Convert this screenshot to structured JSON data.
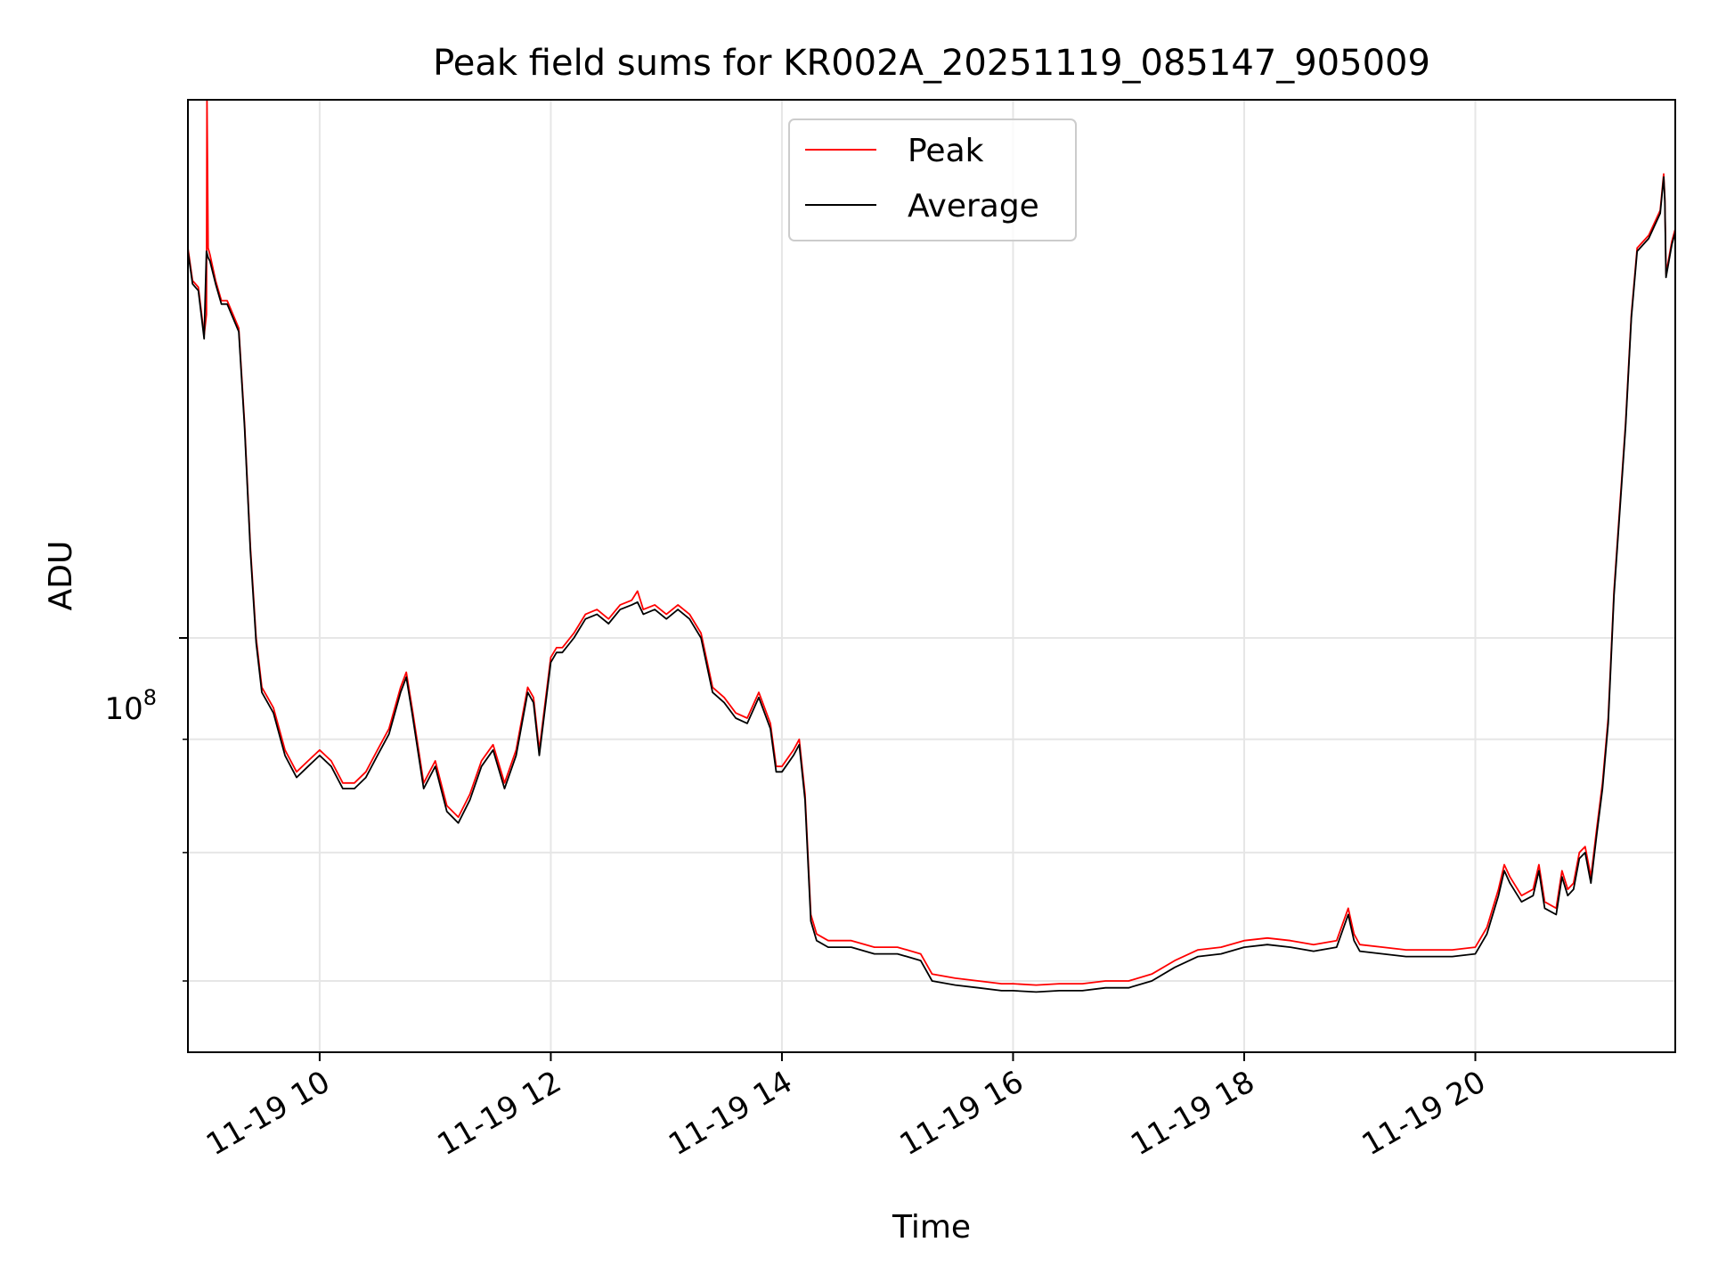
{
  "chart_data": {
    "type": "line",
    "title": "Peak field sums for KR002A_20251119_085147_905009",
    "xlabel": "Time",
    "ylabel": "ADU",
    "y_scale": "log",
    "x_ticks": [
      "11-19 10",
      "11-19 12",
      "11-19 14",
      "11-19 16",
      "11-19 18",
      "11-19 20"
    ],
    "x_tick_values": [
      10,
      12,
      14,
      16,
      18,
      20
    ],
    "y_major_tick_value": 100000000,
    "y_major_tick_label": {
      "base": "10",
      "exp": "8"
    },
    "y_minor_tick_values": [
      70000000,
      80000000,
      90000000
    ],
    "xlim": [
      8.86,
      21.73
    ],
    "ylim": [
      65000000,
      175000000
    ],
    "grid": true,
    "legend_position": "upper center",
    "series": [
      {
        "name": "Peak",
        "color": "#ff0000",
        "x": [
          8.86,
          8.9,
          8.95,
          9.0,
          9.02,
          9.025,
          9.035,
          9.05,
          9.1,
          9.15,
          9.2,
          9.3,
          9.35,
          9.4,
          9.45,
          9.5,
          9.55,
          9.6,
          9.7,
          9.8,
          9.9,
          10.0,
          10.1,
          10.2,
          10.3,
          10.4,
          10.5,
          10.6,
          10.7,
          10.75,
          10.8,
          10.9,
          11.0,
          11.1,
          11.2,
          11.3,
          11.4,
          11.5,
          11.6,
          11.7,
          11.8,
          11.85,
          11.9,
          12.0,
          12.05,
          12.1,
          12.2,
          12.3,
          12.4,
          12.5,
          12.6,
          12.7,
          12.75,
          12.8,
          12.9,
          13.0,
          13.1,
          13.2,
          13.3,
          13.4,
          13.5,
          13.6,
          13.7,
          13.8,
          13.9,
          13.95,
          14.0,
          14.1,
          14.15,
          14.2,
          14.25,
          14.3,
          14.4,
          14.6,
          14.8,
          15.0,
          15.2,
          15.3,
          15.5,
          15.7,
          15.9,
          16.0,
          16.2,
          16.4,
          16.6,
          16.8,
          17.0,
          17.2,
          17.4,
          17.6,
          17.8,
          18.0,
          18.2,
          18.4,
          18.6,
          18.8,
          18.9,
          18.95,
          19.0,
          19.2,
          19.4,
          19.6,
          19.8,
          20.0,
          20.1,
          20.2,
          20.25,
          20.3,
          20.4,
          20.5,
          20.55,
          20.6,
          20.7,
          20.75,
          20.8,
          20.85,
          20.9,
          20.95,
          21.0,
          21.05,
          21.1,
          21.15,
          21.2,
          21.3,
          21.35,
          21.4,
          21.5,
          21.6,
          21.63,
          21.64,
          21.65,
          21.7,
          21.73
        ],
        "y": [
          150000000,
          145000000,
          144000000,
          137000000,
          140000000,
          175000000,
          150000000,
          149000000,
          145000000,
          142000000,
          142000000,
          138000000,
          125000000,
          110000000,
          100000000,
          95000000,
          94000000,
          93000000,
          89000000,
          87000000,
          88000000,
          89000000,
          88000000,
          86000000,
          86000000,
          87000000,
          89000000,
          91000000,
          95000000,
          96500000,
          93000000,
          86000000,
          88000000,
          84000000,
          83000000,
          85000000,
          88000000,
          89500000,
          86000000,
          89000000,
          95000000,
          94000000,
          89000000,
          98000000,
          99000000,
          99000000,
          100500000,
          102500000,
          103000000,
          102000000,
          103500000,
          104000000,
          105000000,
          103000000,
          103500000,
          102500000,
          103500000,
          102500000,
          100500000,
          95000000,
          94000000,
          92500000,
          92000000,
          94500000,
          91500000,
          87500000,
          87500000,
          89000000,
          90000000,
          85000000,
          75000000,
          73500000,
          73000000,
          73000000,
          72500000,
          72500000,
          72000000,
          70500000,
          70200000,
          70000000,
          69800000,
          69800000,
          69700000,
          69800000,
          69800000,
          70000000,
          70000000,
          70500000,
          71500000,
          72300000,
          72500000,
          73000000,
          73200000,
          73000000,
          72700000,
          73000000,
          75500000,
          73500000,
          72700000,
          72500000,
          72300000,
          72300000,
          72300000,
          72500000,
          74000000,
          77000000,
          79000000,
          78000000,
          76500000,
          77000000,
          79000000,
          76000000,
          75500000,
          78500000,
          77000000,
          77500000,
          80000000,
          80500000,
          78000000,
          82000000,
          86000000,
          92000000,
          105000000,
          125000000,
          140000000,
          150000000,
          152000000,
          156000000,
          162000000,
          158000000,
          146000000,
          151000000,
          153000000
        ]
      },
      {
        "name": "Average",
        "color": "#000000",
        "x": [
          8.86,
          8.9,
          8.95,
          9.0,
          9.02,
          9.035,
          9.05,
          9.1,
          9.15,
          9.2,
          9.3,
          9.35,
          9.4,
          9.45,
          9.5,
          9.55,
          9.6,
          9.7,
          9.8,
          9.9,
          10.0,
          10.1,
          10.2,
          10.3,
          10.4,
          10.5,
          10.6,
          10.7,
          10.75,
          10.8,
          10.9,
          11.0,
          11.1,
          11.2,
          11.3,
          11.4,
          11.5,
          11.6,
          11.7,
          11.8,
          11.85,
          11.9,
          12.0,
          12.05,
          12.1,
          12.2,
          12.3,
          12.4,
          12.5,
          12.6,
          12.7,
          12.75,
          12.8,
          12.9,
          13.0,
          13.1,
          13.2,
          13.3,
          13.4,
          13.5,
          13.6,
          13.7,
          13.8,
          13.9,
          13.95,
          14.0,
          14.1,
          14.15,
          14.2,
          14.25,
          14.3,
          14.4,
          14.6,
          14.8,
          15.0,
          15.2,
          15.3,
          15.5,
          15.7,
          15.9,
          16.0,
          16.2,
          16.4,
          16.6,
          16.8,
          17.0,
          17.2,
          17.4,
          17.6,
          17.8,
          18.0,
          18.2,
          18.4,
          18.6,
          18.8,
          18.9,
          18.95,
          19.0,
          19.2,
          19.4,
          19.6,
          19.8,
          20.0,
          20.1,
          20.2,
          20.25,
          20.3,
          20.4,
          20.5,
          20.55,
          20.6,
          20.7,
          20.75,
          20.8,
          20.85,
          20.9,
          20.95,
          21.0,
          21.05,
          21.1,
          21.15,
          21.2,
          21.3,
          21.35,
          21.4,
          21.5,
          21.6,
          21.63,
          21.64,
          21.65,
          21.7,
          21.73
        ],
        "y": [
          149500000,
          144500000,
          143500000,
          136500000,
          149500000,
          148500000,
          148000000,
          144500000,
          141500000,
          141500000,
          137500000,
          124500000,
          109500000,
          99500000,
          94500000,
          93500000,
          92500000,
          88500000,
          86500000,
          87500000,
          88500000,
          87500000,
          85500000,
          85500000,
          86500000,
          88500000,
          90500000,
          94500000,
          96000000,
          92500000,
          85500000,
          87500000,
          83500000,
          82500000,
          84500000,
          87500000,
          89000000,
          85500000,
          88500000,
          94500000,
          93500000,
          88500000,
          97500000,
          98500000,
          98500000,
          100000000,
          102000000,
          102500000,
          101500000,
          103000000,
          103500000,
          103800000,
          102500000,
          103000000,
          102000000,
          103000000,
          102000000,
          100000000,
          94500000,
          93500000,
          92000000,
          91500000,
          94000000,
          91000000,
          87000000,
          87000000,
          88500000,
          89500000,
          84500000,
          74500000,
          73000000,
          72500000,
          72500000,
          72000000,
          72000000,
          71500000,
          70000000,
          69700000,
          69500000,
          69300000,
          69300000,
          69200000,
          69300000,
          69300000,
          69500000,
          69500000,
          70000000,
          71000000,
          71800000,
          72000000,
          72500000,
          72700000,
          72500000,
          72200000,
          72500000,
          75000000,
          73000000,
          72200000,
          72000000,
          71800000,
          71800000,
          71800000,
          72000000,
          73500000,
          76500000,
          78500000,
          77500000,
          76000000,
          76500000,
          78500000,
          75500000,
          75000000,
          78000000,
          76500000,
          77000000,
          79500000,
          80000000,
          77500000,
          81500000,
          85500000,
          91500000,
          104500000,
          124500000,
          139500000,
          149500000,
          151500000,
          155500000,
          161500000,
          157500000,
          145500000,
          150500000,
          152500000
        ]
      }
    ]
  }
}
